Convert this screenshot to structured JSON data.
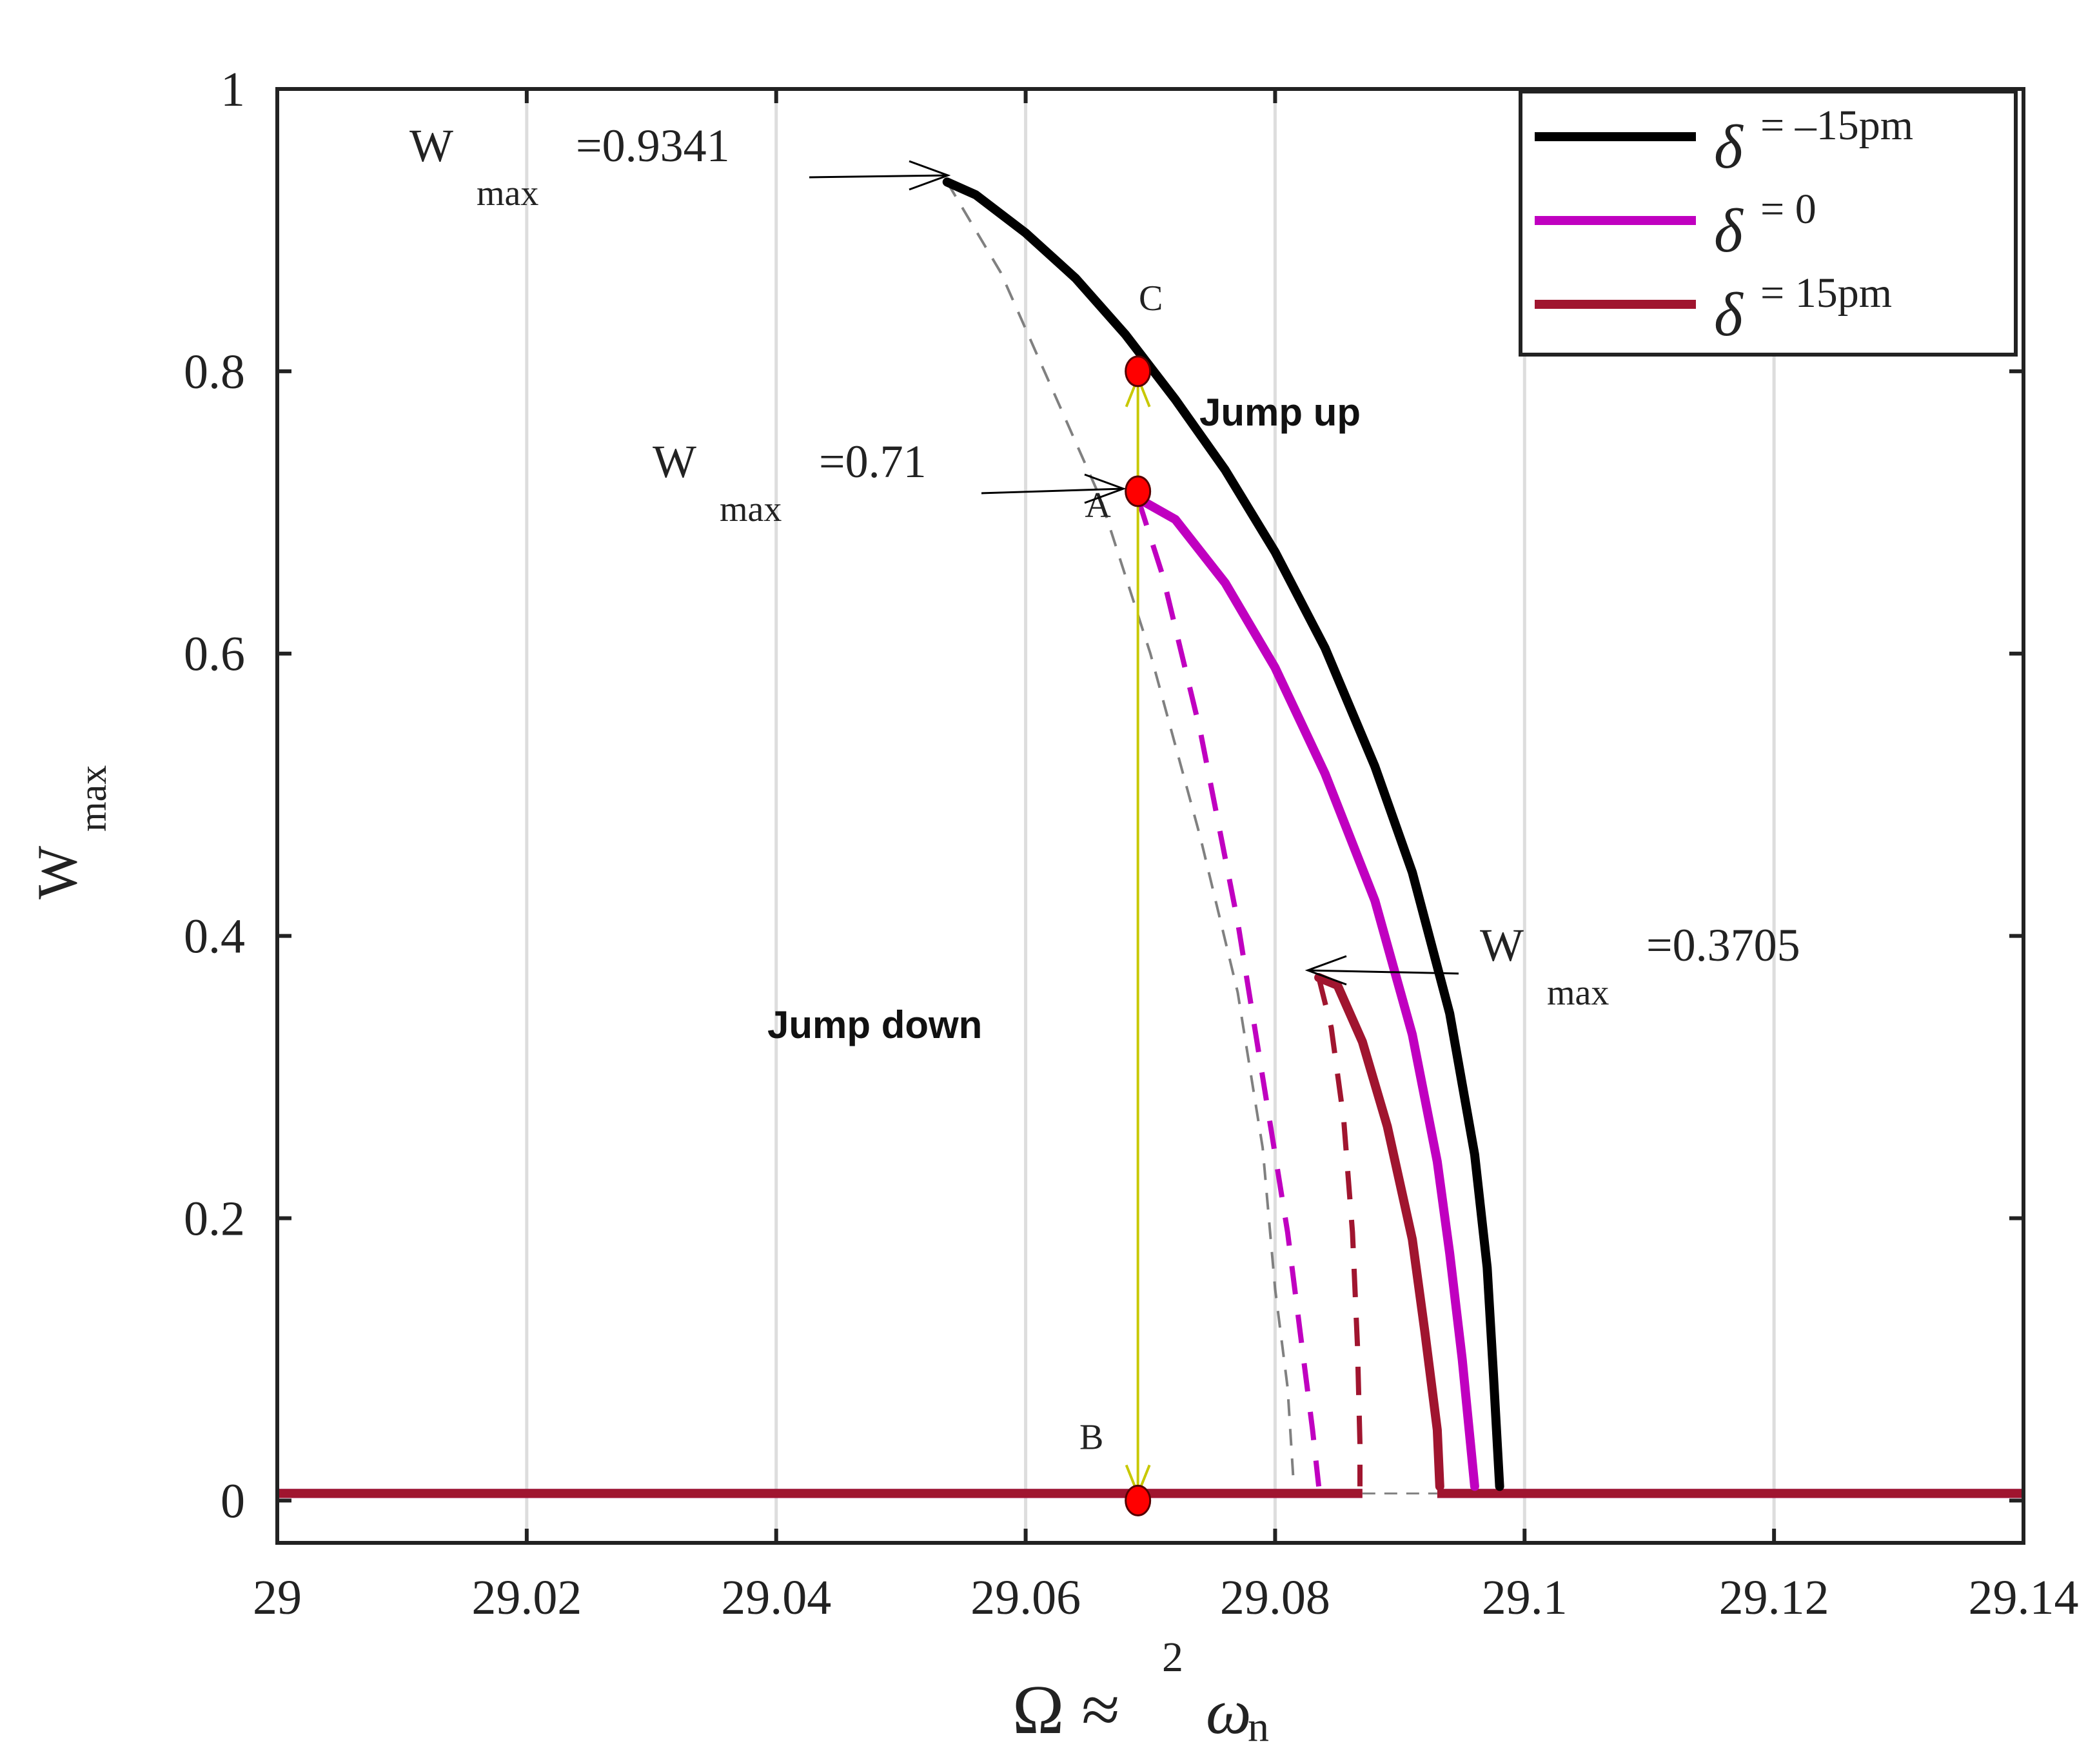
{
  "chart_data": {
    "type": "line",
    "title": "",
    "xlabel": {
      "main": "Ω ≈",
      "superscript": "2",
      "omega": "ω",
      "subscript": "n"
    },
    "ylabel": {
      "main": "W",
      "subscript": "max"
    },
    "xlim": [
      29.0,
      29.14
    ],
    "ylim": [
      -0.03,
      1.0
    ],
    "x_ticks": [
      29.0,
      29.02,
      29.04,
      29.06,
      29.08,
      29.1,
      29.12,
      29.14
    ],
    "x_tick_labels": [
      "29",
      "29.02",
      "29.04",
      "29.06",
      "29.08",
      "29.1",
      "29.12",
      "29.14"
    ],
    "y_ticks": [
      0,
      0.2,
      0.4,
      0.6,
      0.8,
      1.0
    ],
    "y_tick_labels": [
      "0",
      "0.2",
      "0.4",
      "0.6",
      "0.8",
      "1"
    ],
    "grid": "vertical",
    "legend_position": "top-right",
    "series": [
      {
        "name": "δ = −15pm",
        "legend_symbol": "δ",
        "legend_text": "= –15pm",
        "color": "#000000",
        "stable_upper": [
          [
            29.0537,
            0.9341
          ],
          [
            29.056,
            0.925
          ],
          [
            29.06,
            0.898
          ],
          [
            29.064,
            0.866
          ],
          [
            29.068,
            0.826
          ],
          [
            29.072,
            0.78
          ],
          [
            29.076,
            0.73
          ],
          [
            29.08,
            0.672
          ],
          [
            29.084,
            0.604
          ],
          [
            29.088,
            0.52
          ],
          [
            29.091,
            0.445
          ],
          [
            29.094,
            0.345
          ],
          [
            29.096,
            0.245
          ],
          [
            29.097,
            0.165
          ],
          [
            29.0975,
            0.09
          ],
          [
            29.098,
            0.01
          ]
        ],
        "unstable": [
          [
            29.0537,
            0.9341
          ],
          [
            29.058,
            0.87
          ],
          [
            29.062,
            0.79
          ],
          [
            29.066,
            0.71
          ],
          [
            29.07,
            0.6
          ],
          [
            29.074,
            0.47
          ],
          [
            29.077,
            0.36
          ],
          [
            29.079,
            0.25
          ],
          [
            29.08,
            0.15
          ],
          [
            29.081,
            0.08
          ],
          [
            29.0815,
            0.01
          ]
        ],
        "stable_lower_x_range": [
          29.0,
          29.14
        ]
      },
      {
        "name": "δ = 0",
        "legend_symbol": "δ",
        "legend_text": "= 0",
        "color": "#c000c0",
        "stable_upper": [
          [
            29.069,
            0.71
          ],
          [
            29.072,
            0.695
          ],
          [
            29.076,
            0.65
          ],
          [
            29.08,
            0.59
          ],
          [
            29.084,
            0.515
          ],
          [
            29.088,
            0.425
          ],
          [
            29.091,
            0.33
          ],
          [
            29.093,
            0.24
          ],
          [
            29.094,
            0.175
          ],
          [
            29.095,
            0.1
          ],
          [
            29.096,
            0.01
          ]
        ],
        "unstable": [
          [
            29.069,
            0.71
          ],
          [
            29.071,
            0.655
          ],
          [
            29.074,
            0.545
          ],
          [
            29.077,
            0.41
          ],
          [
            29.079,
            0.3
          ],
          [
            29.081,
            0.19
          ],
          [
            29.082,
            0.12
          ],
          [
            29.083,
            0.05
          ],
          [
            29.0835,
            0.01
          ]
        ],
        "stable_lower_x_range": [
          29.0,
          29.14
        ]
      },
      {
        "name": "δ = 15pm",
        "legend_symbol": "δ",
        "legend_text": "= 15pm",
        "color": "#a0152f",
        "stable_upper": [
          [
            29.0835,
            0.3705
          ],
          [
            29.085,
            0.365
          ],
          [
            29.087,
            0.325
          ],
          [
            29.089,
            0.265
          ],
          [
            29.091,
            0.185
          ],
          [
            29.092,
            0.12
          ],
          [
            29.093,
            0.05
          ],
          [
            29.0932,
            0.01
          ]
        ],
        "unstable": [
          [
            29.0835,
            0.3705
          ],
          [
            29.0845,
            0.335
          ],
          [
            29.0855,
            0.27
          ],
          [
            29.0862,
            0.19
          ],
          [
            29.0866,
            0.11
          ],
          [
            29.0868,
            0.04
          ],
          [
            29.0868,
            0.01
          ]
        ],
        "stable_lower_x_range": [
          29.0,
          29.14
        ]
      }
    ],
    "markers": [
      {
        "label": "C",
        "x": 29.069,
        "y": 0.8
      },
      {
        "label": "A",
        "x": 29.069,
        "y": 0.715
      },
      {
        "label": "B",
        "x": 29.069,
        "y": 0.0
      }
    ],
    "jump_line": {
      "x": 29.069,
      "y_top": 0.8,
      "y_bottom": 0.0
    },
    "annotations": {
      "jump_up": "Jump up",
      "jump_down": "Jump down",
      "peaks": [
        {
          "main": "W",
          "sub": "max",
          "value": "=0.9341",
          "x": 29.0537,
          "y": 0.9341
        },
        {
          "main": "W",
          "sub": "max",
          "value": "=0.71",
          "x": 29.069,
          "y": 0.715
        },
        {
          "main": "W",
          "sub": "max",
          "value": "=0.3705",
          "x": 29.0835,
          "y": 0.3705
        }
      ]
    },
    "colors": {
      "axis": "#222222",
      "grid": "#dddddd",
      "jump_line": "#c8c800",
      "marker_fill": "#ff0000",
      "unstable_gray": "#808080"
    }
  }
}
